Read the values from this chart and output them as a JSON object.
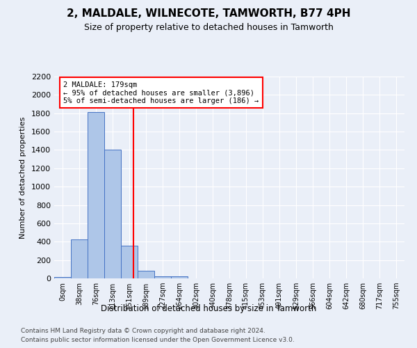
{
  "title": "2, MALDALE, WILNECOTE, TAMWORTH, B77 4PH",
  "subtitle": "Size of property relative to detached houses in Tamworth",
  "xlabel": "Distribution of detached houses by size in Tamworth",
  "ylabel": "Number of detached properties",
  "bin_labels": [
    "0sqm",
    "38sqm",
    "76sqm",
    "113sqm",
    "151sqm",
    "189sqm",
    "227sqm",
    "264sqm",
    "302sqm",
    "340sqm",
    "378sqm",
    "415sqm",
    "453sqm",
    "491sqm",
    "529sqm",
    "566sqm",
    "604sqm",
    "642sqm",
    "680sqm",
    "717sqm",
    "755sqm"
  ],
  "bar_values": [
    15,
    425,
    1810,
    1400,
    355,
    80,
    25,
    20,
    0,
    0,
    0,
    0,
    0,
    0,
    0,
    0,
    0,
    0,
    0,
    0,
    0
  ],
  "bar_color": "#aec6e8",
  "bar_edge_color": "#4472c4",
  "annotation_title": "2 MALDALE: 179sqm",
  "annotation_line1": "← 95% of detached houses are smaller (3,896)",
  "annotation_line2": "5% of semi-detached houses are larger (186) →",
  "red_line_x": 4.236,
  "ylim": [
    0,
    2200
  ],
  "yticks": [
    0,
    200,
    400,
    600,
    800,
    1000,
    1200,
    1400,
    1600,
    1800,
    2000,
    2200
  ],
  "footer1": "Contains HM Land Registry data © Crown copyright and database right 2024.",
  "footer2": "Contains public sector information licensed under the Open Government Licence v3.0.",
  "bg_color": "#eaeff8",
  "plot_bg_color": "#eaeff8"
}
